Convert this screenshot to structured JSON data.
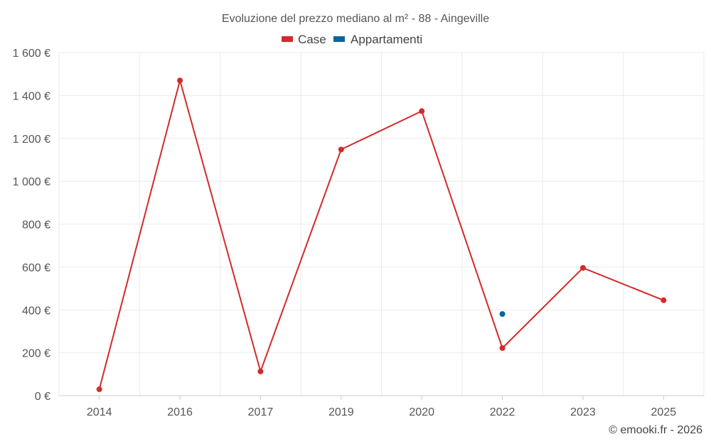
{
  "chart_data": {
    "type": "line",
    "title": "Evoluzione del prezzo mediano al m² - 88 - Aingeville",
    "categories": [
      "2014",
      "2016",
      "2017",
      "2019",
      "2020",
      "2022",
      "2023",
      "2025"
    ],
    "series": [
      {
        "name": "Case",
        "color": "#d32a2a",
        "values": [
          30,
          1470,
          113,
          1148,
          1327,
          222,
          596,
          445
        ]
      },
      {
        "name": "Appartamenti",
        "color": "#0b6699",
        "values": [
          null,
          null,
          null,
          null,
          null,
          381,
          null,
          null
        ]
      }
    ],
    "ylim": [
      0,
      1600
    ],
    "yticks": [
      0,
      200,
      400,
      600,
      800,
      1000,
      1200,
      1400,
      1600
    ],
    "ytick_labels": [
      "0 €",
      "200 €",
      "400 €",
      "600 €",
      "800 €",
      "1 000 €",
      "1 200 €",
      "1 400 €",
      "1 600 €"
    ],
    "xlabel": "",
    "ylabel": "",
    "grid": true,
    "legend": "top-center"
  },
  "credit": "© emooki.fr - 2026"
}
